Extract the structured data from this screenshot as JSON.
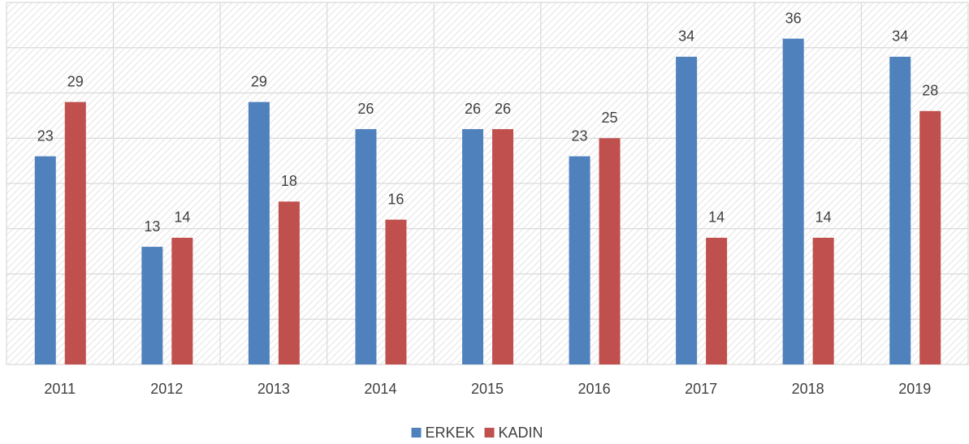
{
  "chart_data": {
    "type": "bar",
    "categories": [
      "2011",
      "2012",
      "2013",
      "2014",
      "2015",
      "2016",
      "2017",
      "2018",
      "2019"
    ],
    "series": [
      {
        "name": "ERKEK",
        "color": "#4f81bd",
        "values": [
          23,
          13,
          29,
          26,
          26,
          23,
          34,
          36,
          34
        ]
      },
      {
        "name": "KADIN",
        "color": "#c0504d",
        "values": [
          29,
          14,
          18,
          16,
          26,
          25,
          14,
          14,
          28
        ]
      }
    ],
    "ylim": [
      0,
      40
    ],
    "yticks": [
      0,
      5,
      10,
      15,
      20,
      25,
      30,
      35,
      40
    ],
    "grid": true,
    "legend": "bottom"
  }
}
